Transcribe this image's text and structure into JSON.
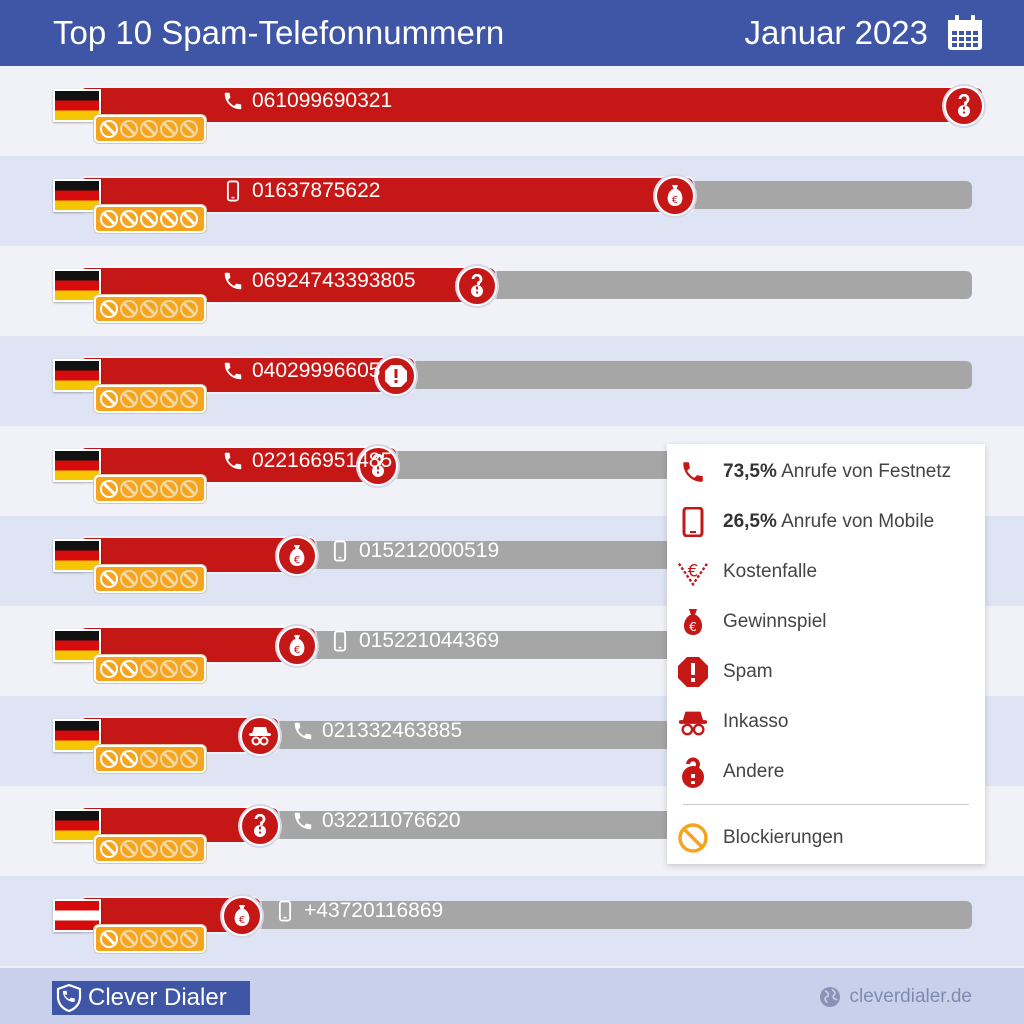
{
  "header": {
    "title": "Top 10 Spam-Telefonnummern",
    "month": "Januar 2023"
  },
  "colors": {
    "header": "#3f55a5",
    "bar_fill": "#c61717",
    "bar_track": "#a6a6a6",
    "block_badge": "#f7a41d"
  },
  "chart_data": {
    "type": "bar",
    "title": "Top 10 Spam-Telefonnummern",
    "max_value": 100,
    "rows": [
      {
        "number": "061099690321",
        "country": "DE",
        "line": "festnetz",
        "category": "Andere",
        "value": 100,
        "blockings": 1
      },
      {
        "number": "01637875622",
        "country": "DE",
        "line": "mobile",
        "category": "Gewinnspiel",
        "value": 68,
        "blockings": 5
      },
      {
        "number": "06924743393805",
        "country": "DE",
        "line": "festnetz",
        "category": "Andere",
        "value": 46,
        "blockings": 1
      },
      {
        "number": "04029996605",
        "country": "DE",
        "line": "festnetz",
        "category": "Spam",
        "value": 37,
        "blockings": 1
      },
      {
        "number": "022166951485",
        "country": "DE",
        "line": "festnetz",
        "category": "Andere",
        "value": 35,
        "blockings": 1
      },
      {
        "number": "015212000519",
        "country": "DE",
        "line": "mobile",
        "category": "Gewinnspiel",
        "value": 26,
        "blockings": 1
      },
      {
        "number": "015221044369",
        "country": "DE",
        "line": "mobile",
        "category": "Gewinnspiel",
        "value": 26,
        "blockings": 2
      },
      {
        "number": "021332463885",
        "country": "DE",
        "line": "festnetz",
        "category": "Inkasso",
        "value": 22,
        "blockings": 2
      },
      {
        "number": "032211076620",
        "country": "DE",
        "line": "festnetz",
        "category": "Andere",
        "value": 22,
        "blockings": 1
      },
      {
        "number": "+43720116869",
        "country": "AT",
        "line": "mobile",
        "category": "Gewinnspiel",
        "value": 20,
        "blockings": 1
      }
    ]
  },
  "legend": {
    "festnetz": {
      "value": "73,5%",
      "label": "Anrufe von Festnetz"
    },
    "mobile": {
      "value": "26,5%",
      "label": "Anrufe von Mobile"
    },
    "kostenfalle": "Kostenfalle",
    "gewinnspiel": "Gewinnspiel",
    "spam": "Spam",
    "inkasso": "Inkasso",
    "andere": "Andere",
    "blockierungen": "Blockierungen"
  },
  "footer": {
    "brand": "Clever Dialer",
    "site": "cleverdialer.de"
  }
}
